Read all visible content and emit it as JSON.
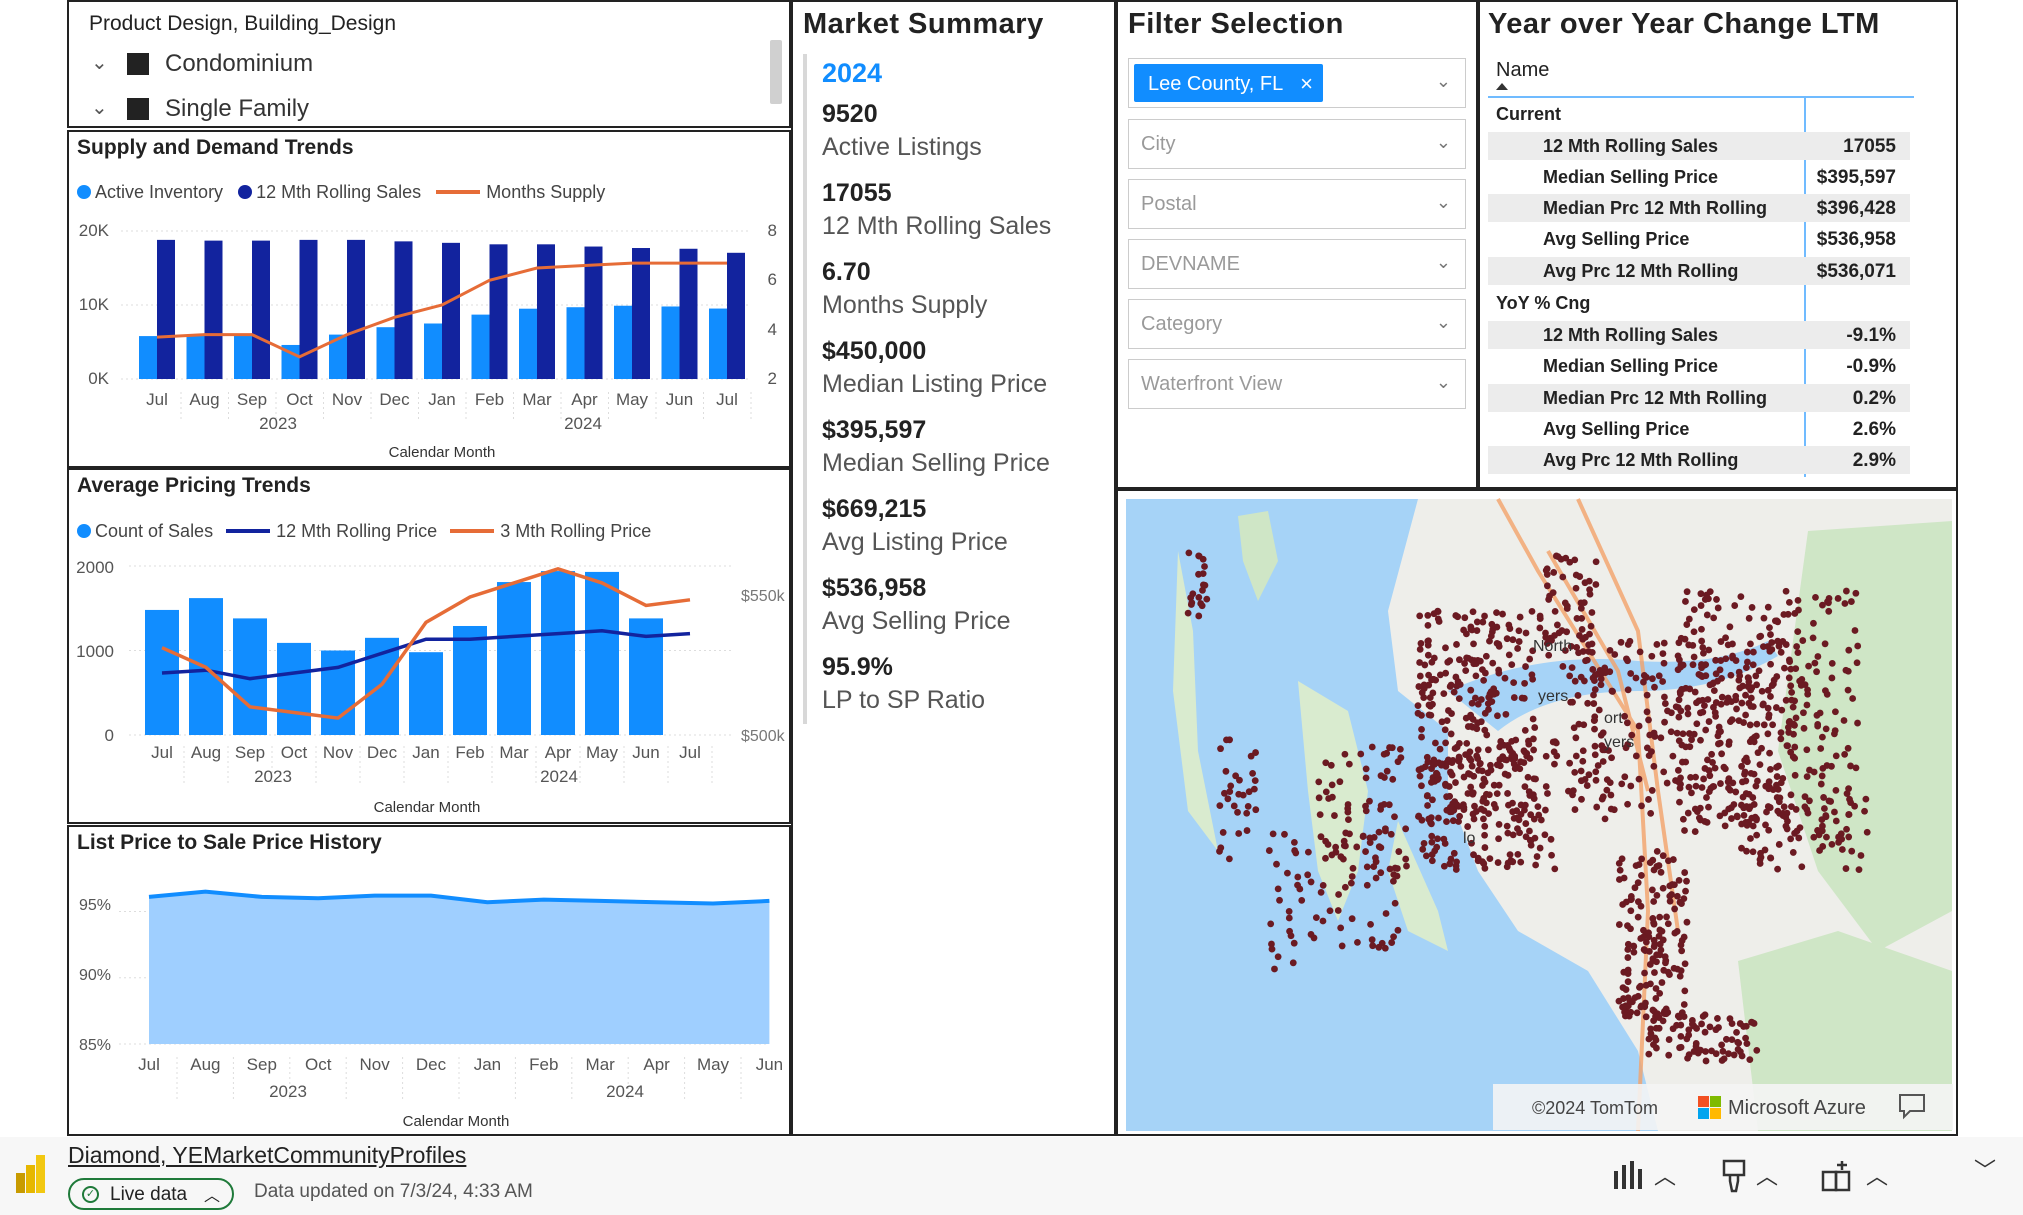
{
  "colors": {
    "accent_blue": "#118dff",
    "dark_blue": "#12239e",
    "orange": "#e66c37",
    "light_area": "#9fcfff",
    "map_dots": "#6b1a22"
  },
  "slicer": {
    "title": "Product Design, Building_Design",
    "items": [
      {
        "label": "Condominium"
      },
      {
        "label": "Single Family"
      }
    ]
  },
  "supply": {
    "title": "Supply and Demand Trends",
    "legend": [
      "Active Inventory",
      "12 Mth Rolling Sales",
      "Months Supply"
    ],
    "xlabel": "Calendar Month",
    "years": [
      "2023",
      "2024"
    ],
    "y_ticks": [
      "20K",
      "10K",
      "0K"
    ],
    "y2_ticks": [
      "8",
      "6",
      "4",
      "2"
    ]
  },
  "pricing": {
    "title": "Average Pricing Trends",
    "legend": [
      "Count of Sales",
      "12 Mth Rolling Price",
      "3 Mth Rolling Price"
    ],
    "xlabel": "Calendar Month",
    "years": [
      "2023",
      "2024"
    ],
    "y_ticks": [
      "2000",
      "1000",
      "0"
    ],
    "y2_ticks": [
      "$550k",
      "$500k"
    ]
  },
  "history": {
    "title": "List Price to Sale Price History",
    "xlabel": "Calendar Month",
    "years": [
      "2023",
      "2024"
    ],
    "y_ticks": [
      "95%",
      "90%",
      "85%"
    ]
  },
  "market": {
    "title": "Market Summary",
    "year": "2024",
    "items": [
      {
        "value": "9520",
        "label": "Active Listings"
      },
      {
        "value": "17055",
        "label": "12 Mth Rolling Sales"
      },
      {
        "value": "6.70",
        "label": "Months Supply"
      },
      {
        "value": "$450,000",
        "label": "Median Listing Price"
      },
      {
        "value": "$395,597",
        "label": "Median Selling Price"
      },
      {
        "value": "$669,215",
        "label": "Avg Listing Price"
      },
      {
        "value": "$536,958",
        "label": "Avg Selling Price"
      },
      {
        "value": "95.9%",
        "label": "LP to SP Ratio"
      }
    ]
  },
  "filters": {
    "title": "Filter Selection",
    "selected_chip": "Lee County, FL",
    "placeholders": [
      "City",
      "Postal",
      "DEVNAME",
      "Category",
      "Waterfront View"
    ]
  },
  "yoy": {
    "title": "Year over Year Change LTM",
    "header": "Name",
    "groups": [
      {
        "name": "Current",
        "rows": [
          {
            "label": "12 Mth Rolling Sales",
            "value": "17055"
          },
          {
            "label": "Median Selling Price",
            "value": "$395,597"
          },
          {
            "label": "Median Prc 12 Mth Rolling",
            "value": "$396,428"
          },
          {
            "label": "Avg Selling Price",
            "value": "$536,958"
          },
          {
            "label": "Avg Prc 12 Mth Rolling",
            "value": "$536,071"
          }
        ]
      },
      {
        "name": "YoY % Cng",
        "rows": [
          {
            "label": "12 Mth Rolling Sales",
            "value": "-9.1%"
          },
          {
            "label": "Median Selling Price",
            "value": "-0.9%"
          },
          {
            "label": "Median Prc 12 Mth Rolling",
            "value": "0.2%"
          },
          {
            "label": "Avg Selling Price",
            "value": "2.6%"
          },
          {
            "label": "Avg Prc 12 Mth Rolling",
            "value": "2.9%"
          }
        ]
      }
    ]
  },
  "map": {
    "attribution": "©2024 TomTom",
    "brand": "Microsoft Azure",
    "labels": [
      "North",
      "yers",
      "ort",
      "yers",
      "lo"
    ]
  },
  "footer": {
    "report_name": "Diamond, YEMarketCommunityProfiles",
    "live_label": "Live data",
    "updated": "Data updated on 7/3/24, 4:33 AM"
  },
  "chart_data": [
    {
      "type": "bar",
      "title": "Supply and Demand Trends",
      "xlabel": "Calendar Month",
      "categories": [
        "Jul",
        "Aug",
        "Sep",
        "Oct",
        "Nov",
        "Dec",
        "Jan",
        "Feb",
        "Mar",
        "Apr",
        "May",
        "Jun",
        "Jul"
      ],
      "series": [
        {
          "name": "Active Inventory",
          "values": [
            5800,
            5900,
            6000,
            4600,
            6000,
            7000,
            7500,
            8700,
            9500,
            9700,
            9900,
            9800,
            9520
          ]
        },
        {
          "name": "12 Mth Rolling Sales",
          "values": [
            18800,
            18700,
            18700,
            18800,
            18800,
            18600,
            18400,
            18200,
            18200,
            17900,
            17700,
            17600,
            17055
          ]
        },
        {
          "name": "Months Supply",
          "values": [
            3.7,
            3.8,
            3.8,
            2.9,
            3.8,
            4.5,
            5.0,
            6.0,
            6.5,
            6.6,
            6.7,
            6.7,
            6.7
          ]
        }
      ],
      "ylim": [
        0,
        20000
      ],
      "y2lim": [
        2,
        8
      ]
    },
    {
      "type": "bar",
      "title": "Average Pricing Trends",
      "xlabel": "Calendar Month",
      "categories": [
        "Jul",
        "Aug",
        "Sep",
        "Oct",
        "Nov",
        "Dec",
        "Jan",
        "Feb",
        "Mar",
        "Apr",
        "May",
        "Jun",
        "Jul"
      ],
      "series": [
        {
          "name": "Count of Sales",
          "values": [
            1480,
            1620,
            1380,
            1090,
            1000,
            1150,
            980,
            1290,
            1810,
            1940,
            1930,
            1380,
            null
          ]
        },
        {
          "name": "12 Mth Rolling Price",
          "values": [
            522,
            523,
            520,
            522,
            524,
            529,
            534,
            534,
            535,
            536,
            537,
            535,
            536
          ]
        },
        {
          "name": "3 Mth Rolling Price",
          "values": [
            531,
            524,
            510,
            508,
            506,
            518,
            540,
            549,
            554,
            559,
            554,
            546,
            548
          ]
        }
      ],
      "ylim": [
        0,
        2000
      ],
      "y2lim": [
        500,
        560
      ]
    },
    {
      "type": "area",
      "title": "List Price to Sale Price History",
      "xlabel": "Calendar Month",
      "categories": [
        "Jul",
        "Aug",
        "Sep",
        "Oct",
        "Nov",
        "Dec",
        "Jan",
        "Feb",
        "Mar",
        "Apr",
        "May",
        "Jun"
      ],
      "series": [
        {
          "name": "",
          "values": [
            96.1,
            96.5,
            96.1,
            96.0,
            96.2,
            96.2,
            95.7,
            95.9,
            95.8,
            95.7,
            95.6,
            95.8
          ]
        }
      ],
      "ylim": [
        85,
        97
      ]
    }
  ]
}
